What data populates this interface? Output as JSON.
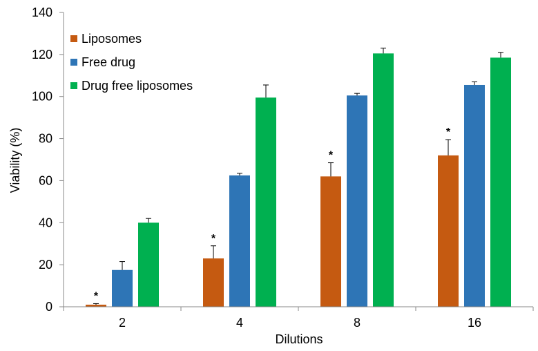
{
  "chart_data": {
    "type": "bar",
    "title": "",
    "xlabel": "Dilutions",
    "ylabel": "Viability (%)",
    "categories": [
      "2",
      "4",
      "8",
      "16"
    ],
    "ylim": [
      0,
      140
    ],
    "yticks": [
      "0",
      "20",
      "40",
      "60",
      "80",
      "100",
      "120",
      "140"
    ],
    "grid": false,
    "legend_position": "top-left",
    "series": [
      {
        "name": "Liposomes",
        "color": "#C55A11",
        "values": [
          1,
          23,
          62,
          72
        ],
        "errors": [
          0.5,
          6,
          6.5,
          7.5
        ],
        "significance": [
          "*",
          "*",
          "*",
          "*"
        ]
      },
      {
        "name": "Free drug",
        "color": "#2E75B6",
        "values": [
          17.5,
          62.5,
          100.5,
          105.5
        ],
        "errors": [
          4,
          1,
          1,
          1.5
        ],
        "significance": [
          "",
          "",
          "",
          ""
        ]
      },
      {
        "name": "Drug free liposomes",
        "color": "#00B050",
        "values": [
          40,
          99.5,
          120.5,
          118.5
        ],
        "errors": [
          2,
          6,
          2.5,
          2.5
        ],
        "significance": [
          "",
          "",
          "",
          ""
        ]
      }
    ]
  }
}
